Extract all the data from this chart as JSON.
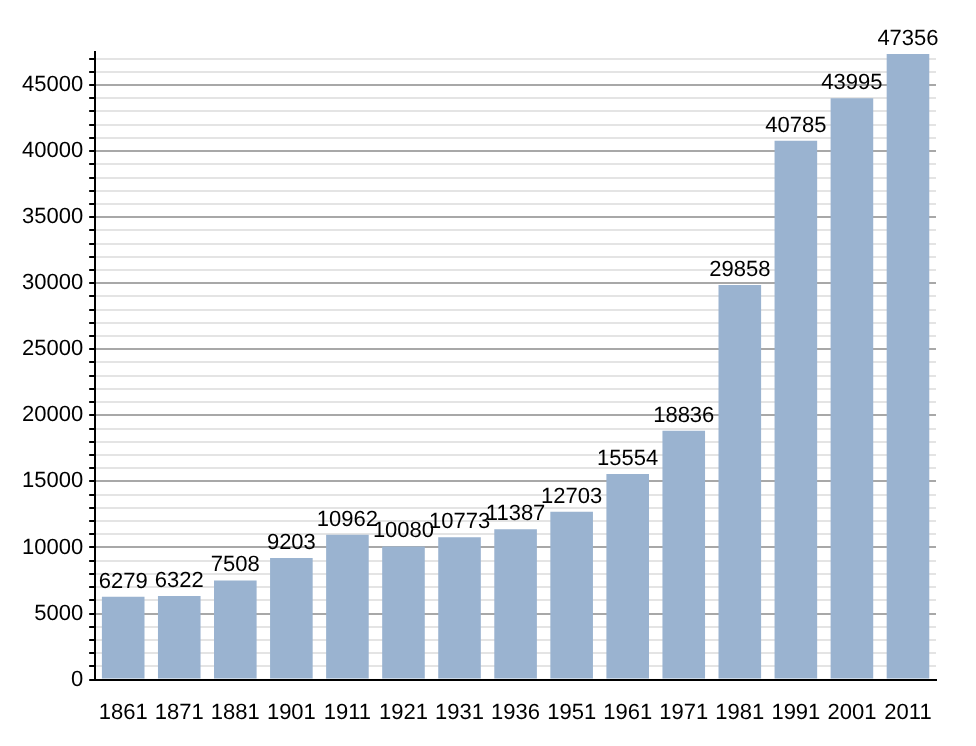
{
  "chart_data": {
    "type": "bar",
    "categories": [
      "1861",
      "1871",
      "1881",
      "1901",
      "1911",
      "1921",
      "1931",
      "1936",
      "1951",
      "1961",
      "1971",
      "1981",
      "1991",
      "2001",
      "2011"
    ],
    "values": [
      6279,
      6322,
      7508,
      9203,
      10962,
      10080,
      10773,
      11387,
      12703,
      15554,
      18836,
      29858,
      40785,
      43995,
      47356
    ],
    "color": "#9ab3d0",
    "ylim": [
      0,
      47500
    ],
    "yticks": [
      0,
      {
        "value": 1000,
        "label": null
      },
      {
        "value": 2000,
        "label": null
      },
      {
        "value": 3000,
        "label": null
      },
      {
        "value": 4000,
        "label": null
      },
      5000,
      {
        "value": 6000,
        "label": null
      },
      {
        "value": 7000,
        "label": null
      },
      {
        "value": 8000,
        "label": null
      },
      {
        "value": 9000,
        "label": null
      },
      10000,
      {
        "value": 11000,
        "label": null
      },
      {
        "value": 12000,
        "label": null
      },
      {
        "value": 13000,
        "label": null
      },
      {
        "value": 14000,
        "label": null
      },
      15000,
      {
        "value": 16000,
        "label": null
      },
      {
        "value": 17000,
        "label": null
      },
      {
        "value": 18000,
        "label": null
      },
      {
        "value": 19000,
        "label": null
      },
      20000,
      {
        "value": 21000,
        "label": null
      },
      {
        "value": 22000,
        "label": null
      },
      {
        "value": 23000,
        "label": null
      },
      {
        "value": 24000,
        "label": null
      },
      25000,
      {
        "value": 26000,
        "label": null
      },
      {
        "value": 27000,
        "label": null
      },
      {
        "value": 28000,
        "label": null
      },
      {
        "value": 29000,
        "label": null
      },
      30000,
      {
        "value": 31000,
        "label": null
      },
      {
        "value": 32000,
        "label": null
      },
      {
        "value": 33000,
        "label": null
      },
      {
        "value": 34000,
        "label": null
      },
      35000,
      {
        "value": 36000,
        "label": null
      },
      {
        "value": 37000,
        "label": null
      },
      {
        "value": 38000,
        "label": null
      },
      {
        "value": 39000,
        "label": null
      },
      40000,
      {
        "value": 41000,
        "label": null
      },
      {
        "value": 42000,
        "label": null
      },
      {
        "value": 43000,
        "label": null
      },
      {
        "value": 44000,
        "label": null
      },
      45000,
      {
        "value": 46000,
        "label": null
      },
      {
        "value": 47000,
        "label": null
      }
    ],
    "grid": true,
    "data_labels": true,
    "legend": false
  }
}
